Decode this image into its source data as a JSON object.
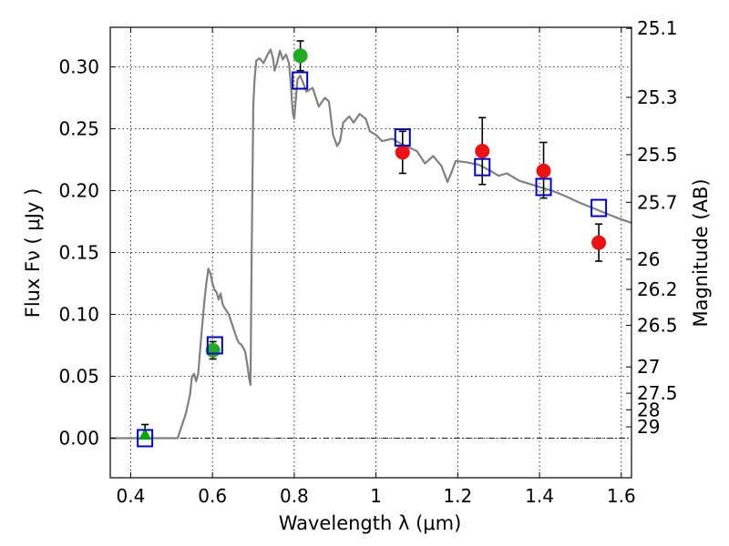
{
  "chart_data": {
    "type": "scatter",
    "title": "",
    "xlabel": "Wavelength  λ (μm)",
    "ylabel": "Flux  Fν  ( μJy )",
    "ylabel_right": "Magnitude (AB)",
    "xlim": [
      0.35,
      1.625
    ],
    "ylim": [
      -0.032,
      0.332
    ],
    "grid": true,
    "x_ticks": [
      0.4,
      0.6,
      0.8,
      1.0,
      1.2,
      1.4,
      1.6
    ],
    "x_tick_labels": [
      "0.4",
      "0.6",
      "0.8",
      "1",
      "1.2",
      "1.4",
      "1.6"
    ],
    "y_ticks": [
      0.0,
      0.05,
      0.1,
      0.15,
      0.2,
      0.25,
      0.3
    ],
    "y_tick_labels": [
      "0.00",
      "0.05",
      "0.10",
      "0.15",
      "0.20",
      "0.25",
      "0.30"
    ],
    "right_ticks": [
      {
        "label": "25.1",
        "mag": 25.1
      },
      {
        "label": "25.3",
        "mag": 25.3
      },
      {
        "label": "25.5",
        "mag": 25.5
      },
      {
        "label": "25.7",
        "mag": 25.7
      },
      {
        "label": "26",
        "mag": 26.0
      },
      {
        "label": "26.2",
        "mag": 26.2
      },
      {
        "label": "26.5",
        "mag": 26.5
      },
      {
        "label": "27",
        "mag": 27.0
      },
      {
        "label": "27.5",
        "mag": 27.5
      },
      {
        "label": "28",
        "mag": 28.0
      },
      {
        "label": "29",
        "mag": 29.0
      }
    ],
    "model_spectrum": {
      "color": "#808080",
      "points": [
        [
          0.35,
          0.0
        ],
        [
          0.515,
          0.0
        ],
        [
          0.525,
          0.01
        ],
        [
          0.535,
          0.02
        ],
        [
          0.545,
          0.035
        ],
        [
          0.55,
          0.05
        ],
        [
          0.555,
          0.052
        ],
        [
          0.56,
          0.046
        ],
        [
          0.565,
          0.052
        ],
        [
          0.572,
          0.08
        ],
        [
          0.58,
          0.11
        ],
        [
          0.585,
          0.125
        ],
        [
          0.59,
          0.137
        ],
        [
          0.595,
          0.133
        ],
        [
          0.6,
          0.125
        ],
        [
          0.605,
          0.12
        ],
        [
          0.61,
          0.118
        ],
        [
          0.615,
          0.112
        ],
        [
          0.62,
          0.117
        ],
        [
          0.625,
          0.108
        ],
        [
          0.63,
          0.105
        ],
        [
          0.64,
          0.1
        ],
        [
          0.65,
          0.09
        ],
        [
          0.66,
          0.08
        ],
        [
          0.665,
          0.077
        ],
        [
          0.672,
          0.075
        ],
        [
          0.68,
          0.07
        ],
        [
          0.685,
          0.06
        ],
        [
          0.69,
          0.048
        ],
        [
          0.693,
          0.043
        ],
        [
          0.696,
          0.15
        ],
        [
          0.7,
          0.27
        ],
        [
          0.703,
          0.29
        ],
        [
          0.707,
          0.305
        ],
        [
          0.715,
          0.307
        ],
        [
          0.725,
          0.303
        ],
        [
          0.735,
          0.31
        ],
        [
          0.742,
          0.314
        ],
        [
          0.748,
          0.307
        ],
        [
          0.752,
          0.297
        ],
        [
          0.758,
          0.303
        ],
        [
          0.765,
          0.313
        ],
        [
          0.772,
          0.306
        ],
        [
          0.78,
          0.31
        ],
        [
          0.787,
          0.303
        ],
        [
          0.792,
          0.285
        ],
        [
          0.795,
          0.27
        ],
        [
          0.797,
          0.262
        ],
        [
          0.8,
          0.258
        ],
        [
          0.803,
          0.27
        ],
        [
          0.808,
          0.29
        ],
        [
          0.815,
          0.293
        ],
        [
          0.83,
          0.28
        ],
        [
          0.845,
          0.283
        ],
        [
          0.86,
          0.268
        ],
        [
          0.875,
          0.275
        ],
        [
          0.885,
          0.272
        ],
        [
          0.895,
          0.245
        ],
        [
          0.905,
          0.236
        ],
        [
          0.912,
          0.24
        ],
        [
          0.92,
          0.255
        ],
        [
          0.935,
          0.26
        ],
        [
          0.945,
          0.255
        ],
        [
          0.96,
          0.262
        ],
        [
          0.975,
          0.258
        ],
        [
          0.985,
          0.248
        ],
        [
          1.0,
          0.245
        ],
        [
          1.015,
          0.24
        ],
        [
          1.04,
          0.242
        ],
        [
          1.06,
          0.238
        ],
        [
          1.08,
          0.235
        ],
        [
          1.1,
          0.232
        ],
        [
          1.12,
          0.222
        ],
        [
          1.14,
          0.228
        ],
        [
          1.16,
          0.22
        ],
        [
          1.175,
          0.207
        ],
        [
          1.185,
          0.215
        ],
        [
          1.195,
          0.224
        ],
        [
          1.22,
          0.223
        ],
        [
          1.25,
          0.221
        ],
        [
          1.28,
          0.216
        ],
        [
          1.3,
          0.212
        ],
        [
          1.32,
          0.214
        ],
        [
          1.35,
          0.208
        ],
        [
          1.38,
          0.205
        ],
        [
          1.4,
          0.203
        ],
        [
          1.43,
          0.2
        ],
        [
          1.46,
          0.196
        ],
        [
          1.5,
          0.19
        ],
        [
          1.53,
          0.186
        ],
        [
          1.56,
          0.182
        ],
        [
          1.59,
          0.178
        ],
        [
          1.625,
          0.174
        ]
      ]
    },
    "model_photometry": {
      "color": "#0000dd",
      "points": [
        [
          0.435,
          0.0
        ],
        [
          0.606,
          0.075
        ],
        [
          0.814,
          0.289
        ],
        [
          1.065,
          0.243
        ],
        [
          1.26,
          0.219
        ],
        [
          1.41,
          0.203
        ],
        [
          1.545,
          0.186
        ]
      ]
    },
    "observed_points": [
      {
        "x": 0.435,
        "y": 0.003,
        "err_low": 0.0,
        "err_high": 0.008,
        "marker": "triangle",
        "color": "#00aa00"
      },
      {
        "x": 0.601,
        "y": 0.071,
        "err_low": 0.007,
        "err_high": 0.007,
        "marker": "circle",
        "color": "#22aa22"
      },
      {
        "x": 0.815,
        "y": 0.309,
        "err_low": 0.012,
        "err_high": 0.012,
        "marker": "circle",
        "color": "#22aa22"
      },
      {
        "x": 1.065,
        "y": 0.231,
        "err_low": 0.017,
        "err_high": 0.017,
        "marker": "circle",
        "color": "#ee1111"
      },
      {
        "x": 1.26,
        "y": 0.232,
        "err_low": 0.027,
        "err_high": 0.027,
        "marker": "circle",
        "color": "#ee1111"
      },
      {
        "x": 1.41,
        "y": 0.216,
        "err_low": 0.022,
        "err_high": 0.023,
        "marker": "circle",
        "color": "#ee1111"
      },
      {
        "x": 1.545,
        "y": 0.158,
        "err_low": 0.015,
        "err_high": 0.015,
        "marker": "circle",
        "color": "#ee1111"
      }
    ]
  }
}
